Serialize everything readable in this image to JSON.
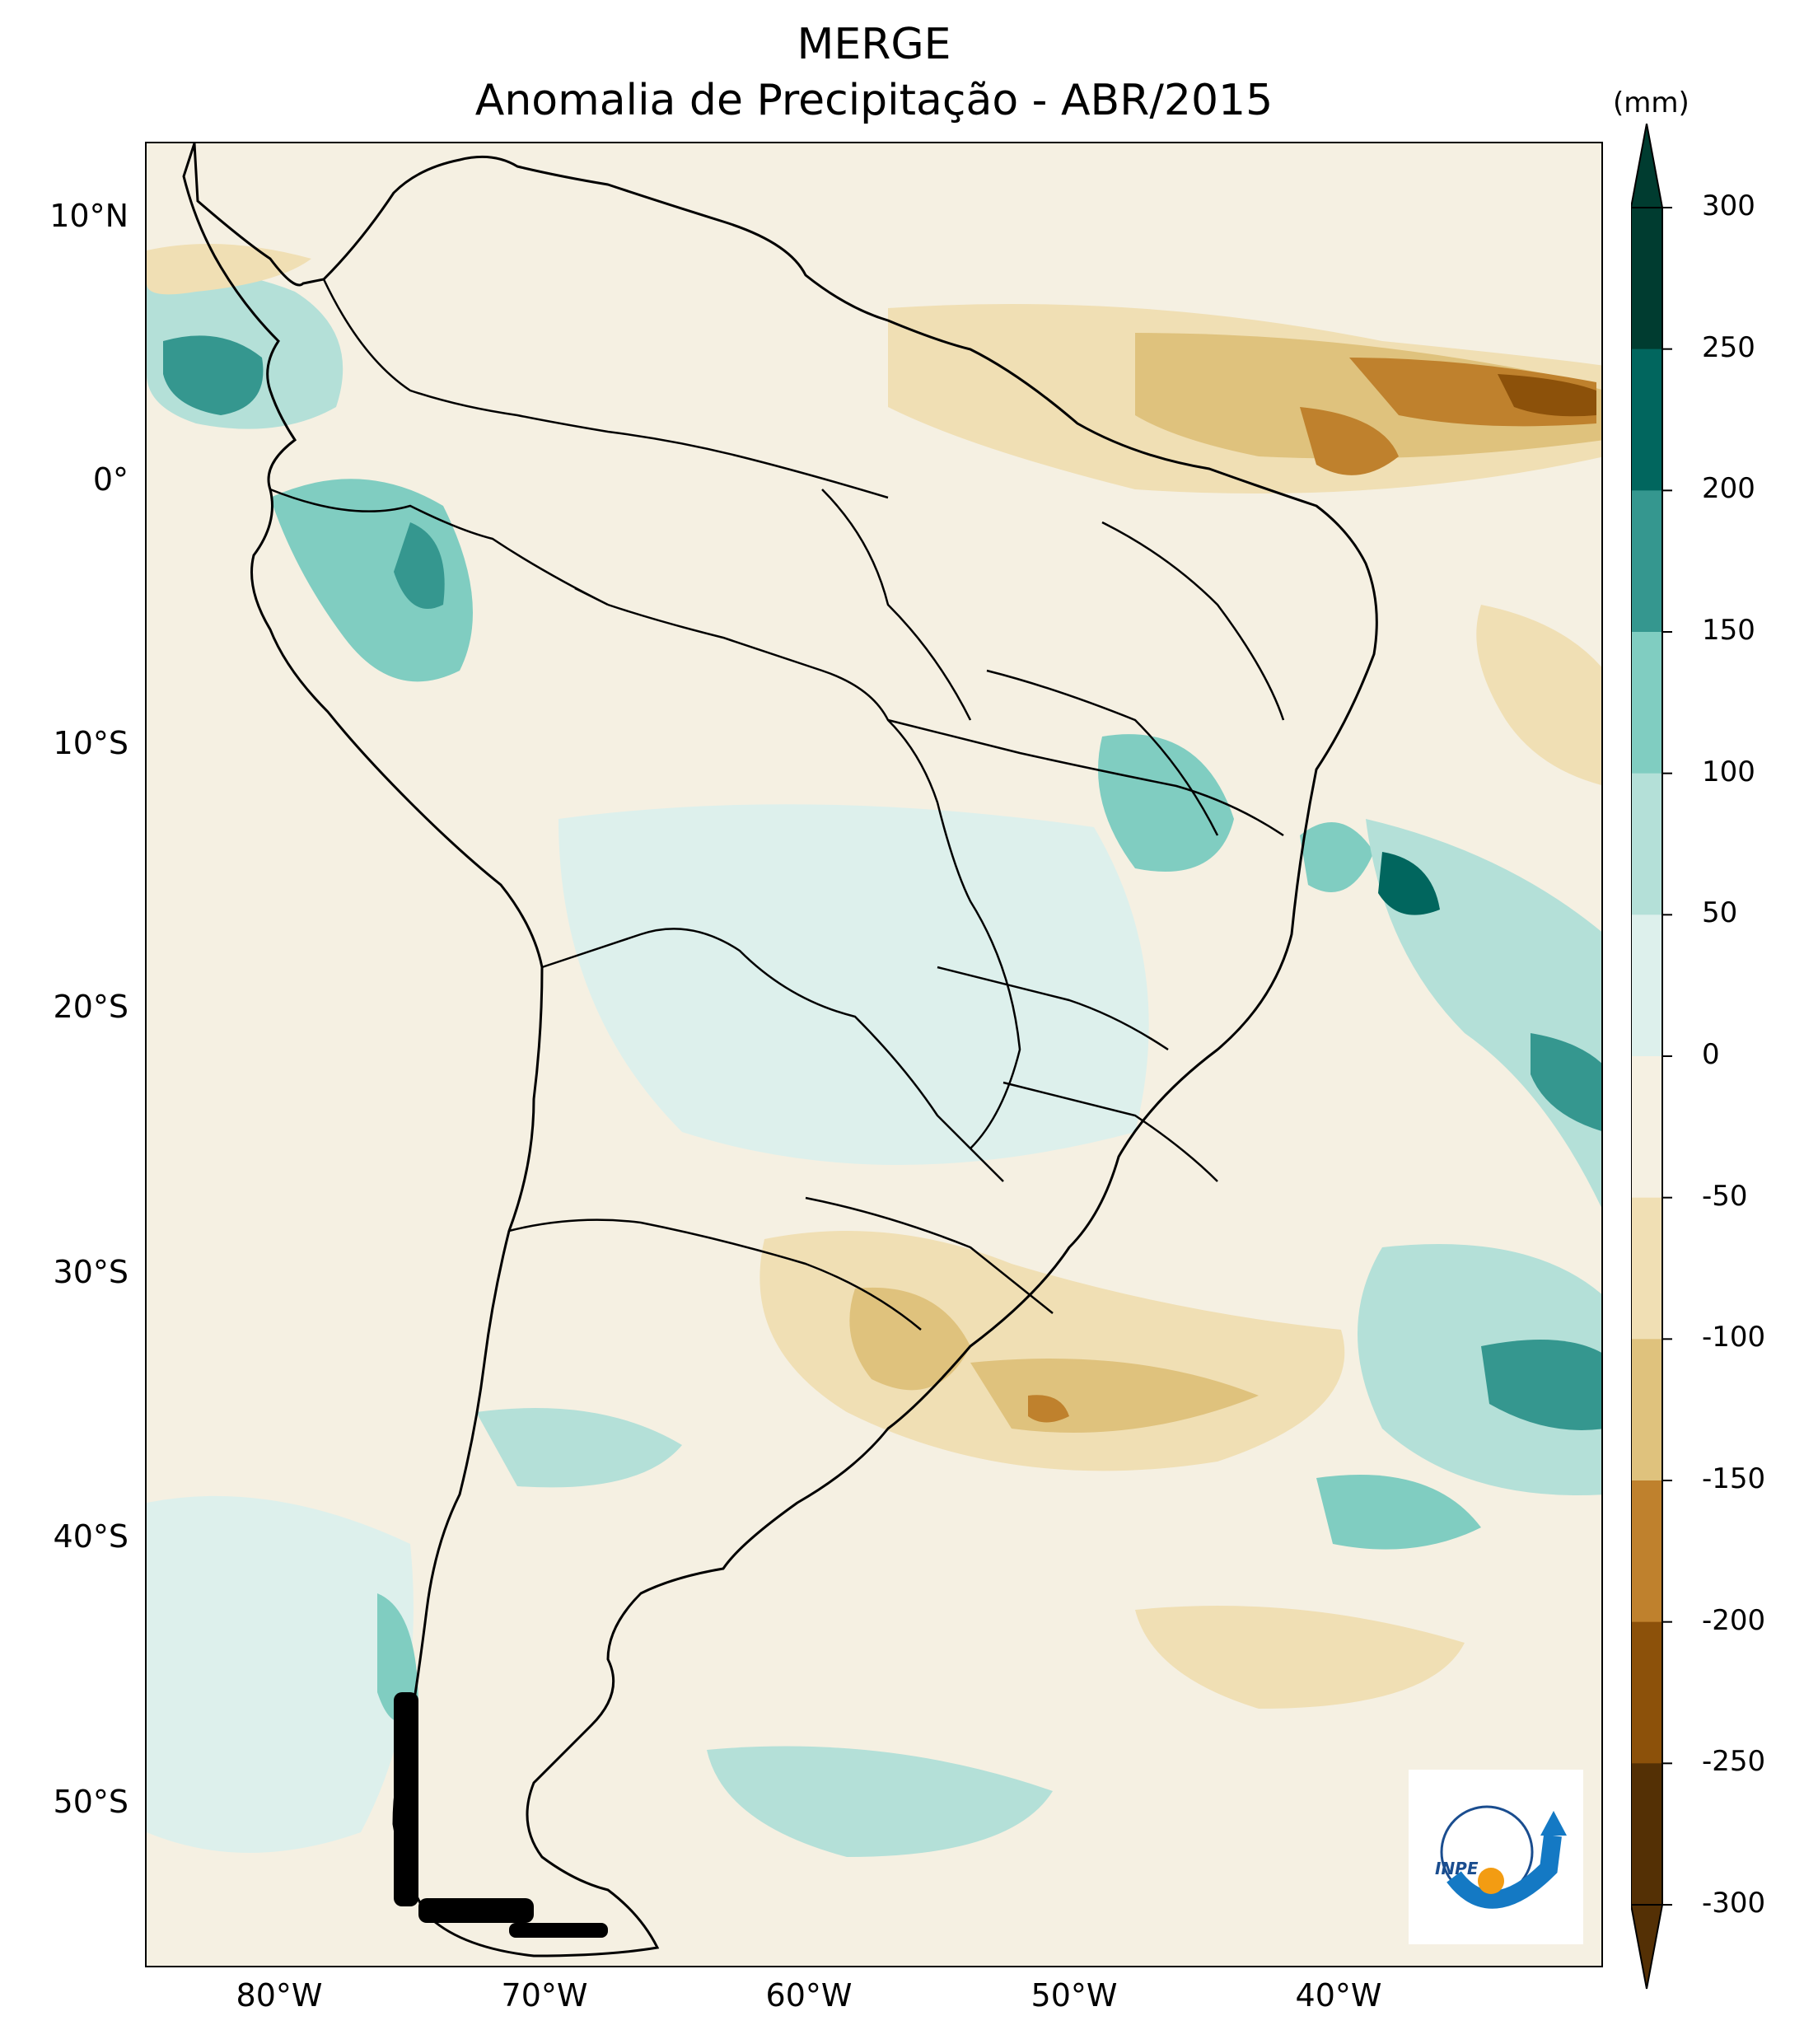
{
  "title": {
    "line1": "MERGE",
    "line2": "Anomalia de Precipitação - ABR/2015"
  },
  "map": {
    "lat_labels": [
      "10°N",
      "0°",
      "10°S",
      "20°S",
      "30°S",
      "40°S",
      "50°S"
    ],
    "lon_labels": [
      "80°W",
      "70°W",
      "60°W",
      "50°W",
      "40°W"
    ],
    "lon_range": [
      -85,
      -30
    ],
    "lat_range": [
      -56,
      13
    ]
  },
  "colorbar": {
    "unit": "(mm)",
    "labels": [
      "300",
      "250",
      "200",
      "150",
      "100",
      "50",
      "0",
      "-50",
      "-100",
      "-150",
      "-200",
      "-250",
      "-300"
    ],
    "colors": [
      "#003c30",
      "#01665e",
      "#35978f",
      "#80cdc1",
      "#b4e0d8",
      "#ddf0ec",
      "#f5f0e2",
      "#f0dfb4",
      "#dfc27d",
      "#bf812d",
      "#8c510a",
      "#543005"
    ]
  },
  "logo": {
    "text": "INPE"
  }
}
